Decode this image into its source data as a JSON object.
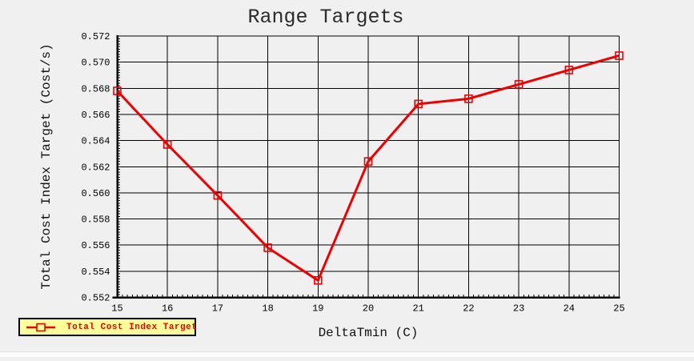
{
  "chart": {
    "title": "Range Targets",
    "x_axis_label": "DeltaTmin (C)",
    "y_axis_label": "Total Cost Index Target (Cost/s)",
    "legend": {
      "label": "Total Cost Index Target",
      "marker": "open-square-on-line"
    },
    "colors": {
      "series": "#ee0000",
      "grid": "#000000",
      "background": "#f0f0f0",
      "legend_background": "#ffff99",
      "legend_border": "#000000",
      "text": "#000000"
    }
  },
  "chart_data": {
    "type": "line",
    "title": "Range Targets",
    "xlabel": "DeltaTmin (C)",
    "ylabel": "Total Cost Index Target (Cost/s)",
    "x": [
      15,
      16,
      17,
      18,
      19,
      20,
      21,
      22,
      23,
      24,
      25
    ],
    "series": [
      {
        "name": "Total Cost Index Target",
        "values": [
          0.5678,
          0.5637,
          0.5598,
          0.5558,
          0.5533,
          0.5624,
          0.5668,
          0.5672,
          0.5683,
          0.5694,
          0.5705
        ]
      }
    ],
    "xlim": [
      15,
      25
    ],
    "ylim": [
      0.552,
      0.572
    ],
    "x_ticks": [
      15,
      16,
      17,
      18,
      19,
      20,
      21,
      22,
      23,
      24,
      25
    ],
    "y_ticks": [
      0.552,
      0.554,
      0.556,
      0.558,
      0.56,
      0.562,
      0.564,
      0.566,
      0.568,
      0.57,
      0.572
    ],
    "y_tick_decimals": 3,
    "x_minor_step": 0.1,
    "y_minor_step": 0.0002,
    "grid": true,
    "legend_position": "bottom-left"
  }
}
